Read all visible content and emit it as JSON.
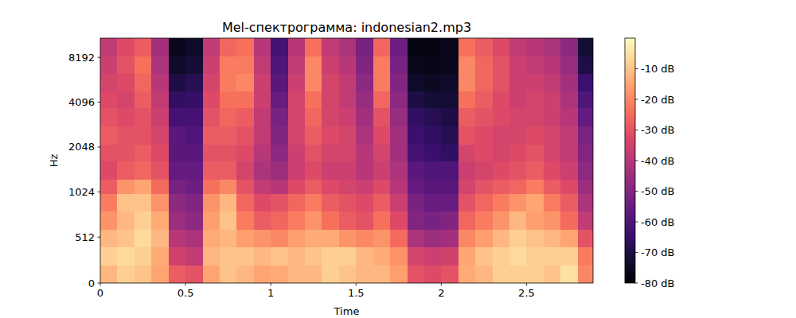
{
  "chart_data": {
    "type": "heatmap",
    "title": "Mel-спектрограмма: indonesian2.mp3",
    "x_label": "Time",
    "y_label": "Hz",
    "xlim": [
      0,
      2.89
    ],
    "xticks": [
      0,
      0.5,
      1,
      1.5,
      2,
      2.5
    ],
    "ylim": [
      0,
      11025
    ],
    "yticks": [
      0,
      512,
      1024,
      2048,
      4096,
      8192
    ],
    "log": "y",
    "color": "magma",
    "time_edges": [
      0,
      0.1,
      0.2,
      0.3,
      0.4,
      0.5,
      0.6,
      0.7,
      0.8,
      0.9,
      1,
      1.1,
      1.2,
      1.3,
      1.4,
      1.5,
      1.6,
      1.7,
      1.8,
      1.9,
      2,
      2.1,
      2.2,
      2.3,
      2.4,
      2.5,
      2.6,
      2.7,
      2.8,
      2.89
    ],
    "freq_edges": [
      0,
      200,
      400,
      600,
      800,
      1000,
      1250,
      1650,
      2150,
      2850,
      3750,
      4900,
      6400,
      8400,
      11025
    ],
    "cells": [
      [
        -12,
        -8,
        -10,
        -15,
        -28,
        -30,
        -15,
        -10,
        -12,
        -15,
        -14,
        -12,
        -12,
        -8,
        -10,
        -12,
        -12,
        -16,
        -30,
        -32,
        -30,
        -14,
        -12,
        -8,
        -8,
        -8,
        -10,
        -5,
        -20
      ],
      [
        -8,
        -6,
        -8,
        -14,
        -35,
        -38,
        -12,
        -10,
        -10,
        -12,
        -10,
        -12,
        -10,
        -8,
        -8,
        -12,
        -14,
        -18,
        -34,
        -36,
        -35,
        -15,
        -10,
        -8,
        -6,
        -8,
        -8,
        -8,
        -22
      ],
      [
        -12,
        -10,
        -6,
        -12,
        -40,
        -42,
        -14,
        -12,
        -16,
        -18,
        -20,
        -16,
        -14,
        -14,
        -18,
        -20,
        -18,
        -25,
        -42,
        -45,
        -44,
        -20,
        -16,
        -12,
        -8,
        -10,
        -12,
        -15,
        -30
      ],
      [
        -18,
        -12,
        -8,
        -14,
        -45,
        -48,
        -16,
        -10,
        -22,
        -28,
        -26,
        -22,
        -18,
        -24,
        -28,
        -30,
        -24,
        -32,
        -50,
        -52,
        -50,
        -26,
        -22,
        -18,
        -12,
        -16,
        -18,
        -25,
        -38
      ],
      [
        -22,
        -10,
        -10,
        -18,
        -48,
        -50,
        -18,
        -12,
        -26,
        -32,
        -30,
        -26,
        -22,
        -28,
        -30,
        -32,
        -28,
        -36,
        -52,
        -55,
        -55,
        -30,
        -26,
        -22,
        -18,
        -15,
        -22,
        -28,
        -42
      ],
      [
        -28,
        -18,
        -15,
        -25,
        -52,
        -54,
        -24,
        -20,
        -30,
        -38,
        -40,
        -32,
        -28,
        -32,
        -34,
        -36,
        -32,
        -40,
        -56,
        -58,
        -58,
        -34,
        -30,
        -28,
        -26,
        -22,
        -28,
        -32,
        -45
      ],
      [
        -32,
        -28,
        -26,
        -30,
        -56,
        -56,
        -28,
        -28,
        -34,
        -42,
        -45,
        -36,
        -32,
        -36,
        -36,
        -40,
        -36,
        -42,
        -58,
        -60,
        -60,
        -36,
        -34,
        -32,
        -30,
        -28,
        -32,
        -36,
        -48
      ],
      [
        -30,
        -30,
        -28,
        -32,
        -58,
        -58,
        -30,
        -30,
        -32,
        -40,
        -48,
        -36,
        -30,
        -34,
        -34,
        -40,
        -34,
        -44,
        -62,
        -64,
        -66,
        -34,
        -32,
        -34,
        -32,
        -30,
        -34,
        -38,
        -50
      ],
      [
        -28,
        -30,
        -30,
        -34,
        -58,
        -60,
        -28,
        -28,
        -30,
        -38,
        -50,
        -34,
        -28,
        -32,
        -34,
        -42,
        -32,
        -44,
        -64,
        -66,
        -68,
        -30,
        -32,
        -34,
        -34,
        -32,
        -34,
        -38,
        -52
      ],
      [
        -30,
        -32,
        -30,
        -36,
        -62,
        -62,
        -30,
        -26,
        -28,
        -38,
        -52,
        -34,
        -26,
        -34,
        -36,
        -44,
        -30,
        -46,
        -66,
        -68,
        -70,
        -28,
        -30,
        -32,
        -34,
        -34,
        -36,
        -40,
        -56
      ],
      [
        -32,
        -34,
        -28,
        -38,
        -66,
        -65,
        -32,
        -24,
        -24,
        -36,
        -55,
        -34,
        -24,
        -34,
        -38,
        -46,
        -26,
        -48,
        -70,
        -72,
        -72,
        -24,
        -28,
        -32,
        -36,
        -34,
        -36,
        -42,
        -60
      ],
      [
        -34,
        -32,
        -26,
        -40,
        -70,
        -68,
        -34,
        -22,
        -20,
        -36,
        -58,
        -36,
        -20,
        -34,
        -38,
        -48,
        -22,
        -50,
        -74,
        -75,
        -74,
        -20,
        -26,
        -30,
        -36,
        -36,
        -38,
        -44,
        -64
      ],
      [
        -36,
        -30,
        -24,
        -42,
        -74,
        -72,
        -36,
        -22,
        -22,
        -38,
        -60,
        -38,
        -20,
        -36,
        -40,
        -50,
        -22,
        -52,
        -76,
        -77,
        -76,
        -20,
        -26,
        -30,
        -36,
        -38,
        -40,
        -46,
        -70
      ],
      [
        -38,
        -32,
        -28,
        -44,
        -76,
        -74,
        -38,
        -26,
        -24,
        -40,
        -62,
        -40,
        -24,
        -38,
        -42,
        -52,
        -26,
        -54,
        -78,
        -78,
        -76,
        -24,
        -28,
        -32,
        -38,
        -40,
        -42,
        -48,
        -72
      ]
    ],
    "colorbar_range": [
      -80,
      0
    ],
    "colorbar_ticks": [
      {
        "value": -80,
        "label": "-80 dB"
      },
      {
        "value": -70,
        "label": "-70 dB"
      },
      {
        "value": -60,
        "label": "-60 dB"
      },
      {
        "value": -50,
        "label": "-50 dB"
      },
      {
        "value": -40,
        "label": "-40 dB"
      },
      {
        "value": -30,
        "label": "-30 dB"
      },
      {
        "value": -20,
        "label": "-20 dB"
      },
      {
        "value": -10,
        "label": "-10 dB"
      }
    ]
  }
}
